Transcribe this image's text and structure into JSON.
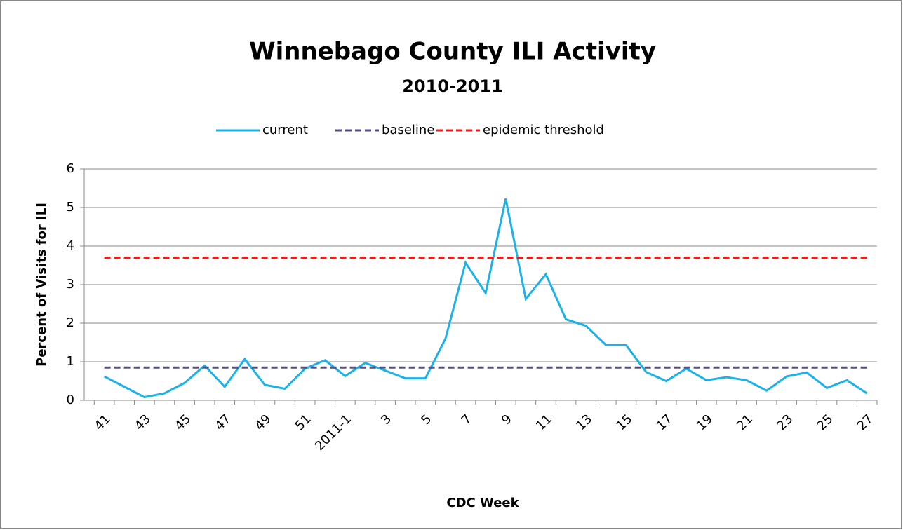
{
  "chart_data": {
    "type": "line",
    "title": "Winnebago County ILI Activity",
    "subtitle": "2010-2011",
    "x_label": "CDC Week",
    "y_label": "Percent of Visits for ILI",
    "categories": [
      "41",
      null,
      "43",
      null,
      "45",
      null,
      "47",
      null,
      "49",
      null,
      "51",
      null,
      "2011-1",
      null,
      "3",
      null,
      "5",
      null,
      "7",
      null,
      "9",
      null,
      "11",
      null,
      "13",
      null,
      "15",
      null,
      "17",
      null,
      "19",
      null,
      "21",
      null,
      "23",
      null,
      "25",
      null,
      "27"
    ],
    "series": [
      {
        "name": "current",
        "color": "#1ab2e8",
        "line_style": "solid",
        "values": [
          0.62,
          0.35,
          0.08,
          0.18,
          0.45,
          0.9,
          0.35,
          1.07,
          0.4,
          0.3,
          0.82,
          1.04,
          0.63,
          0.97,
          0.77,
          0.57,
          0.57,
          1.6,
          3.57,
          2.78,
          5.23,
          2.63,
          3.27,
          2.1,
          1.93,
          1.43,
          1.43,
          0.73,
          0.5,
          0.82,
          0.52,
          0.6,
          0.52,
          0.25,
          0.62,
          0.72,
          0.32,
          0.52,
          0.18
        ]
      },
      {
        "name": "baseline",
        "color": "#5b4a8b",
        "line_style": "dashed",
        "values": [
          0.85,
          0.85,
          0.85,
          0.85,
          0.85,
          0.85,
          0.85,
          0.85,
          0.85,
          0.85,
          0.85,
          0.85,
          0.85,
          0.85,
          0.85,
          0.85,
          0.85,
          0.85,
          0.85,
          0.85,
          0.85,
          0.85,
          0.85,
          0.85,
          0.85,
          0.85,
          0.85,
          0.85,
          0.85,
          0.85,
          0.85,
          0.85,
          0.85,
          0.85,
          0.85,
          0.85,
          0.85,
          0.85,
          0.85
        ]
      },
      {
        "name": "epidemic threshold",
        "color": "#e8201a",
        "line_style": "dashed",
        "values": [
          3.7,
          3.7,
          3.7,
          3.7,
          3.7,
          3.7,
          3.7,
          3.7,
          3.7,
          3.7,
          3.7,
          3.7,
          3.7,
          3.7,
          3.7,
          3.7,
          3.7,
          3.7,
          3.7,
          3.7,
          3.7,
          3.7,
          3.7,
          3.7,
          3.7,
          3.7,
          3.7,
          3.7,
          3.7,
          3.7,
          3.7,
          3.7,
          3.7,
          3.7,
          3.7,
          3.7,
          3.7,
          3.7,
          3.7
        ]
      }
    ],
    "ylim": [
      0,
      6
    ],
    "yticks": [
      0,
      1,
      2,
      3,
      4,
      5,
      6
    ],
    "grid": true,
    "legend": "top"
  }
}
